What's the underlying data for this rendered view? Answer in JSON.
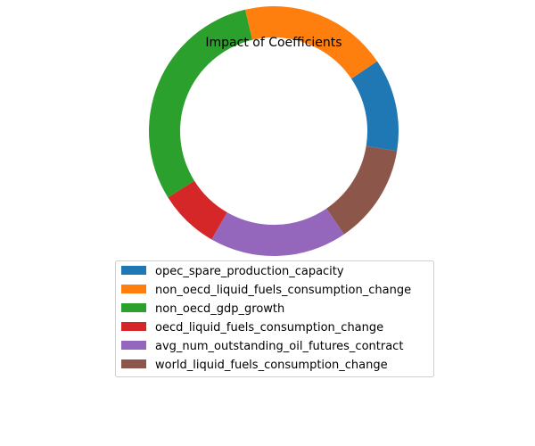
{
  "chart_data": {
    "type": "pie",
    "title": "Impact of Coefficients",
    "donut": true,
    "start_angle_deg": 350.8,
    "direction": "counterclockwise",
    "legend_position": "below",
    "slices": [
      {
        "label": "opec_spare_production_capacity",
        "value": 12.0,
        "color": "#1f77b4"
      },
      {
        "label": "non_oecd_liquid_fuels_consumption_change",
        "value": 19.2,
        "color": "#ff7f0e"
      },
      {
        "label": "non_oecd_gdp_growth",
        "value": 30.2,
        "color": "#2ca02c"
      },
      {
        "label": "oecd_liquid_fuels_consumption_change",
        "value": 7.8,
        "color": "#d62728"
      },
      {
        "label": "avg_num_outstanding_oil_futures_contract",
        "value": 17.8,
        "color": "#9467bd"
      },
      {
        "label": "world_liquid_fuels_consumption_change",
        "value": 12.9,
        "color": "#8c564b"
      }
    ]
  }
}
